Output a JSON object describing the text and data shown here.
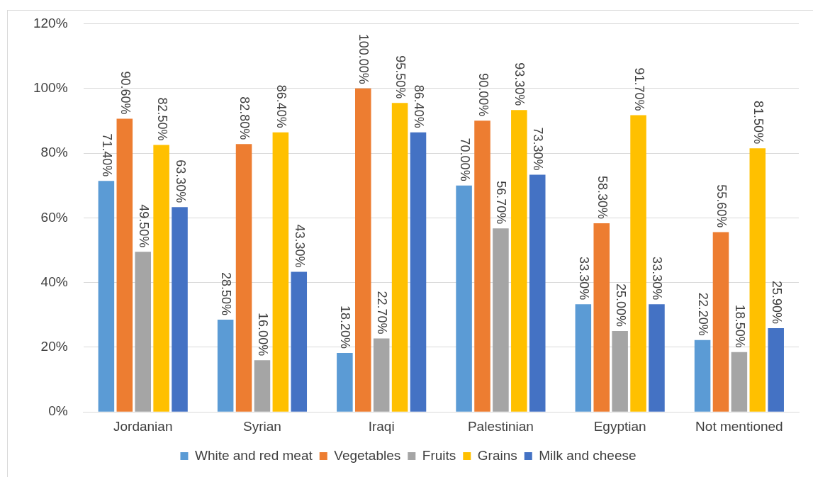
{
  "chart_data": {
    "type": "bar",
    "categories": [
      "Jordanian",
      "Syrian",
      "Iraqi",
      "Palestinian",
      "Egyptian",
      "Not mentioned"
    ],
    "series": [
      {
        "name": "White and red meat",
        "color": "#5b9bd5",
        "values": [
          71.4,
          28.5,
          18.2,
          70.0,
          33.3,
          22.2
        ],
        "value_labels": [
          "71.40%",
          "28.50%",
          "18.20%",
          "70.00%",
          "33.30%",
          "22.20%"
        ]
      },
      {
        "name": "Vegetables",
        "color": "#ed7d31",
        "values": [
          90.6,
          82.8,
          100.0,
          90.0,
          58.3,
          55.6
        ],
        "value_labels": [
          "90.60%",
          "82.80%",
          "100.00%",
          "90.00%",
          "58.30%",
          "55.60%"
        ]
      },
      {
        "name": "Fruits",
        "color": "#a5a5a5",
        "values": [
          49.5,
          16.0,
          22.7,
          56.7,
          25.0,
          18.5
        ],
        "value_labels": [
          "49.50%",
          "16.00%",
          "22.70%",
          "56.70%",
          "25.00%",
          "18.50%"
        ]
      },
      {
        "name": "Grains",
        "color": "#ffc000",
        "values": [
          82.5,
          86.4,
          95.5,
          93.3,
          91.7,
          81.5
        ],
        "value_labels": [
          "82.50%",
          "86.40%",
          "95.50%",
          "93.30%",
          "91.70%",
          "81.50%"
        ]
      },
      {
        "name": "Milk and cheese",
        "color": "#4472c4",
        "values": [
          63.3,
          43.3,
          86.4,
          73.3,
          33.3,
          25.9
        ],
        "value_labels": [
          "63.30%",
          "43.30%",
          "86.40%",
          "73.30%",
          "33.30%",
          "25.90%"
        ]
      }
    ],
    "ylim": [
      0,
      120
    ],
    "yticks": [
      {
        "value": 0,
        "label": "0%"
      },
      {
        "value": 20,
        "label": "20%"
      },
      {
        "value": 40,
        "label": "40%"
      },
      {
        "value": 60,
        "label": "60%"
      },
      {
        "value": 80,
        "label": "80%"
      },
      {
        "value": 100,
        "label": "100%"
      },
      {
        "value": 120,
        "label": "120%"
      }
    ],
    "grid": "y",
    "legend": "bottom"
  }
}
